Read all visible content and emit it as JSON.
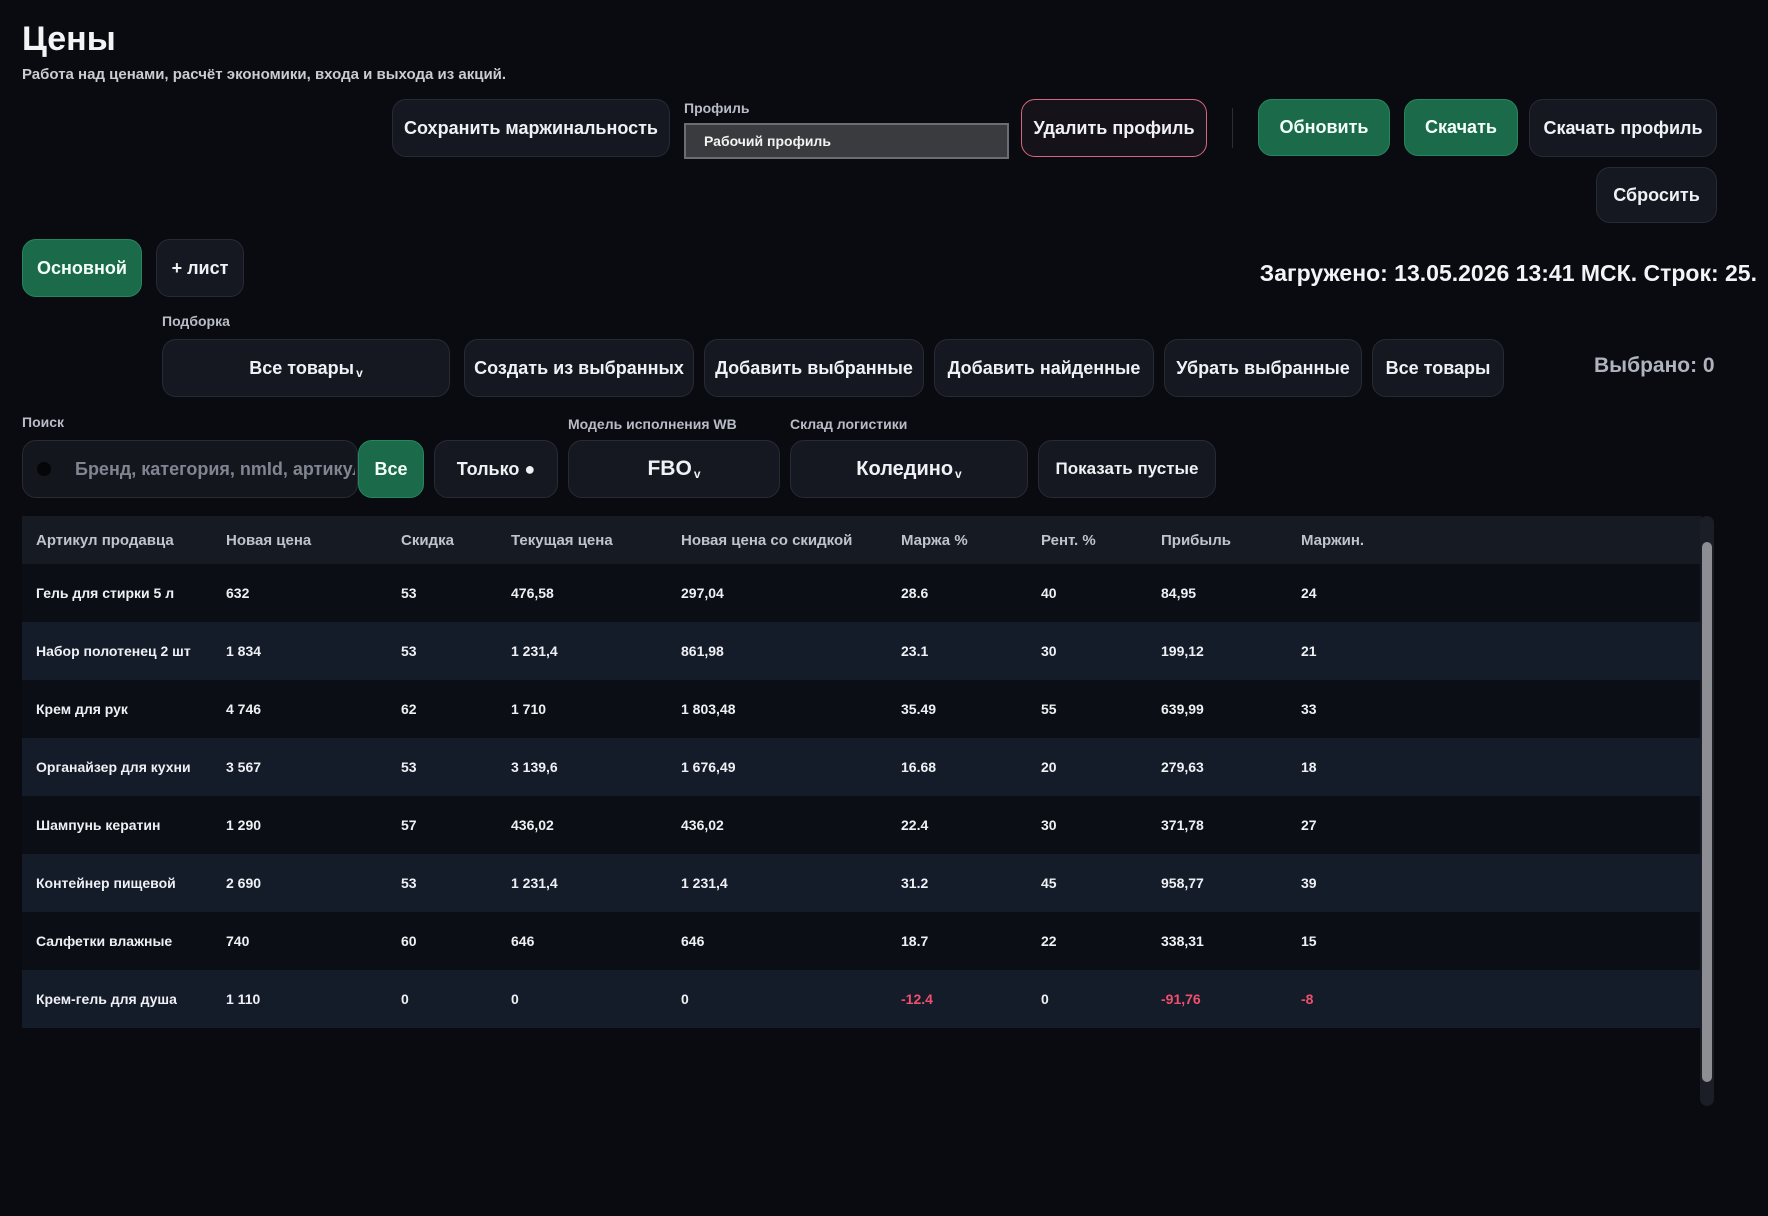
{
  "header": {
    "title": "Цены",
    "subtitle": "Работа над ценами, расчёт экономики, входа и выхода из акций."
  },
  "toolbar": {
    "save_margin": "Сохранить маржинальность",
    "profile_label": "Профиль",
    "profile_value": "Рабочий профиль",
    "delete_profile": "Удалить профиль",
    "refresh": "Обновить",
    "download": "Скачать",
    "download_profile": "Скачать профиль",
    "reset": "Сбросить"
  },
  "sheets": {
    "main": "Основной",
    "add": "+ лист"
  },
  "status": {
    "loaded": "Загружено: 13.05.2026 13:41 МСК. Строк: 25.",
    "selected": "Выбрано: 0"
  },
  "selection": {
    "label": "Подборка",
    "dropdown_value": "Все товары",
    "create_from_selected": "Создать из выбранных",
    "add_selected": "Добавить выбранные",
    "add_found": "Добавить найденные",
    "remove_selected": "Убрать выбранные",
    "all_products": "Все товары"
  },
  "filters": {
    "search_label": "Поиск",
    "search_placeholder": "Бренд, категория, nmId, артикул",
    "all": "Все",
    "only": "Только ●",
    "model_label": "Модель исполнения WB",
    "model_value": "FBO",
    "warehouse_label": "Склад логистики",
    "warehouse_value": "Коледино",
    "show_empty": "Показать пустые"
  },
  "table": {
    "columns": [
      "Артикул продавца",
      "Новая цена",
      "Скидка",
      "Текущая цена",
      "Новая цена со скидкой",
      "Маржа %",
      "Рент. %",
      "Прибыль",
      "Маржин."
    ],
    "rows": [
      [
        "Гель для стирки 5 л",
        "632",
        "53",
        "476,58",
        "297,04",
        "28.6",
        "40",
        "84,95",
        "24"
      ],
      [
        "Набор полотенец 2 шт",
        "1 834",
        "53",
        "1 231,4",
        "861,98",
        "23.1",
        "30",
        "199,12",
        "21"
      ],
      [
        "Крем для рук",
        "4 746",
        "62",
        "1 710",
        "1 803,48",
        "35.49",
        "55",
        "639,99",
        "33"
      ],
      [
        "Органайзер для кухни",
        "3 567",
        "53",
        "3 139,6",
        "1 676,49",
        "16.68",
        "20",
        "279,63",
        "18"
      ],
      [
        "Шампунь кератин",
        "1 290",
        "57",
        "436,02",
        "436,02",
        "22.4",
        "30",
        "371,78",
        "27"
      ],
      [
        "Контейнер пищевой",
        "2 690",
        "53",
        "1 231,4",
        "1 231,4",
        "31.2",
        "45",
        "958,77",
        "39"
      ],
      [
        "Салфетки влажные",
        "740",
        "60",
        "646",
        "646",
        "18.7",
        "22",
        "338,31",
        "15"
      ],
      [
        "Крем-гель для душа",
        "1 110",
        "0",
        "0",
        "0",
        "-12.4",
        "0",
        "-91,76",
        "-8"
      ]
    ]
  }
}
